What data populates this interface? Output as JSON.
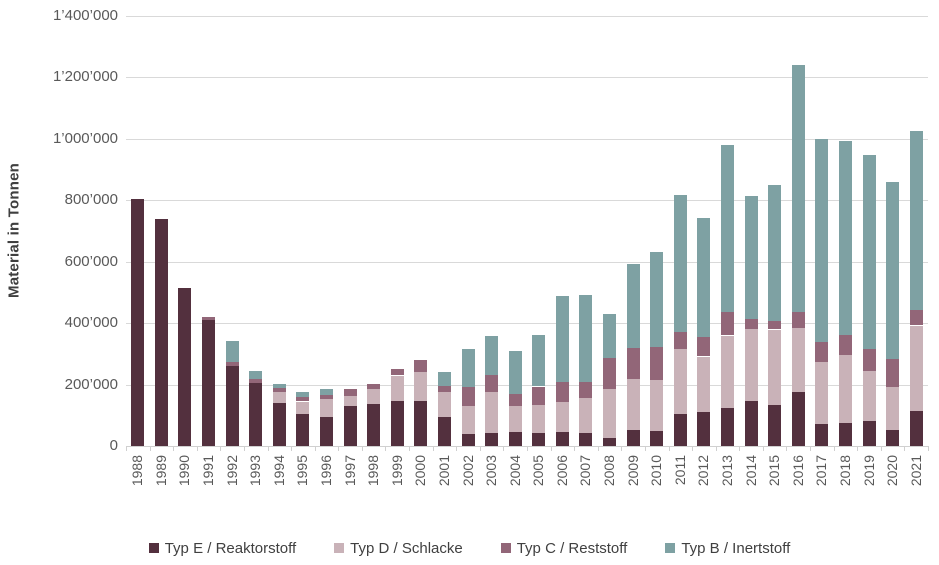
{
  "chart_data": {
    "type": "bar",
    "stacked": true,
    "title": "",
    "xlabel": "",
    "ylabel": "Material in Tonnen",
    "ylim": [
      0,
      1400000
    ],
    "ytick_step": 200000,
    "ytick_labels": [
      "0",
      "200’000",
      "400’000",
      "600’000",
      "800’000",
      "1’000’000",
      "1’200’000",
      "1’400’000"
    ],
    "grid": true,
    "legend_position": "bottom",
    "categories": [
      1988,
      1989,
      1990,
      1991,
      1992,
      1993,
      1994,
      1995,
      1996,
      1997,
      1998,
      1999,
      2000,
      2001,
      2002,
      2003,
      2004,
      2005,
      2006,
      2007,
      2008,
      2009,
      2010,
      2011,
      2012,
      2013,
      2014,
      2015,
      2016,
      2017,
      2018,
      2019,
      2020,
      2021
    ],
    "series": [
      {
        "name": "Typ E / Reaktorstoff",
        "color": "#53303E",
        "values": [
          805000,
          740000,
          515000,
          410000,
          260000,
          205000,
          140000,
          105000,
          95000,
          129000,
          137000,
          148000,
          147000,
          95000,
          38000,
          43000,
          46000,
          43000,
          45000,
          42000,
          27000,
          52000,
          48000,
          105000,
          112000,
          125000,
          145000,
          135000,
          175000,
          70000,
          75000,
          80000,
          53000,
          115000
        ]
      },
      {
        "name": "Typ D / Schlacke",
        "color": "#C9B2B8",
        "values": [
          0,
          0,
          0,
          0,
          0,
          0,
          35000,
          40000,
          58000,
          35000,
          50000,
          82000,
          93000,
          80000,
          92000,
          133000,
          84000,
          91000,
          98000,
          115000,
          160000,
          166000,
          166000,
          210000,
          180000,
          235000,
          235000,
          245000,
          210000,
          205000,
          220000,
          165000,
          139000,
          278000
        ]
      },
      {
        "name": "Typ C / Reststoff",
        "color": "#926678",
        "values": [
          0,
          0,
          0,
          10000,
          12000,
          13000,
          13000,
          15000,
          14000,
          22000,
          15000,
          21000,
          40000,
          20000,
          63000,
          55000,
          39000,
          60000,
          66000,
          51000,
          100000,
          102000,
          108000,
          55000,
          64000,
          75000,
          35000,
          27000,
          52000,
          65000,
          65000,
          72000,
          92000,
          50000
        ]
      },
      {
        "name": "Typ B / Inertstoff",
        "color": "#7EA1A3",
        "values": [
          0,
          0,
          0,
          0,
          68000,
          25000,
          14000,
          15000,
          19000,
          0,
          0,
          0,
          0,
          45000,
          125000,
          128000,
          139000,
          166000,
          281000,
          284000,
          144000,
          273000,
          308000,
          445000,
          389000,
          545000,
          400000,
          443000,
          803000,
          660000,
          630000,
          633000,
          576000,
          582000
        ]
      }
    ],
    "colors": {
      "gridline": "#d9d9d9",
      "axis_line": "#d0d0d0",
      "tick_label": "#595959",
      "axis_title": "#3f3f3f",
      "legend_text": "#404040"
    }
  }
}
